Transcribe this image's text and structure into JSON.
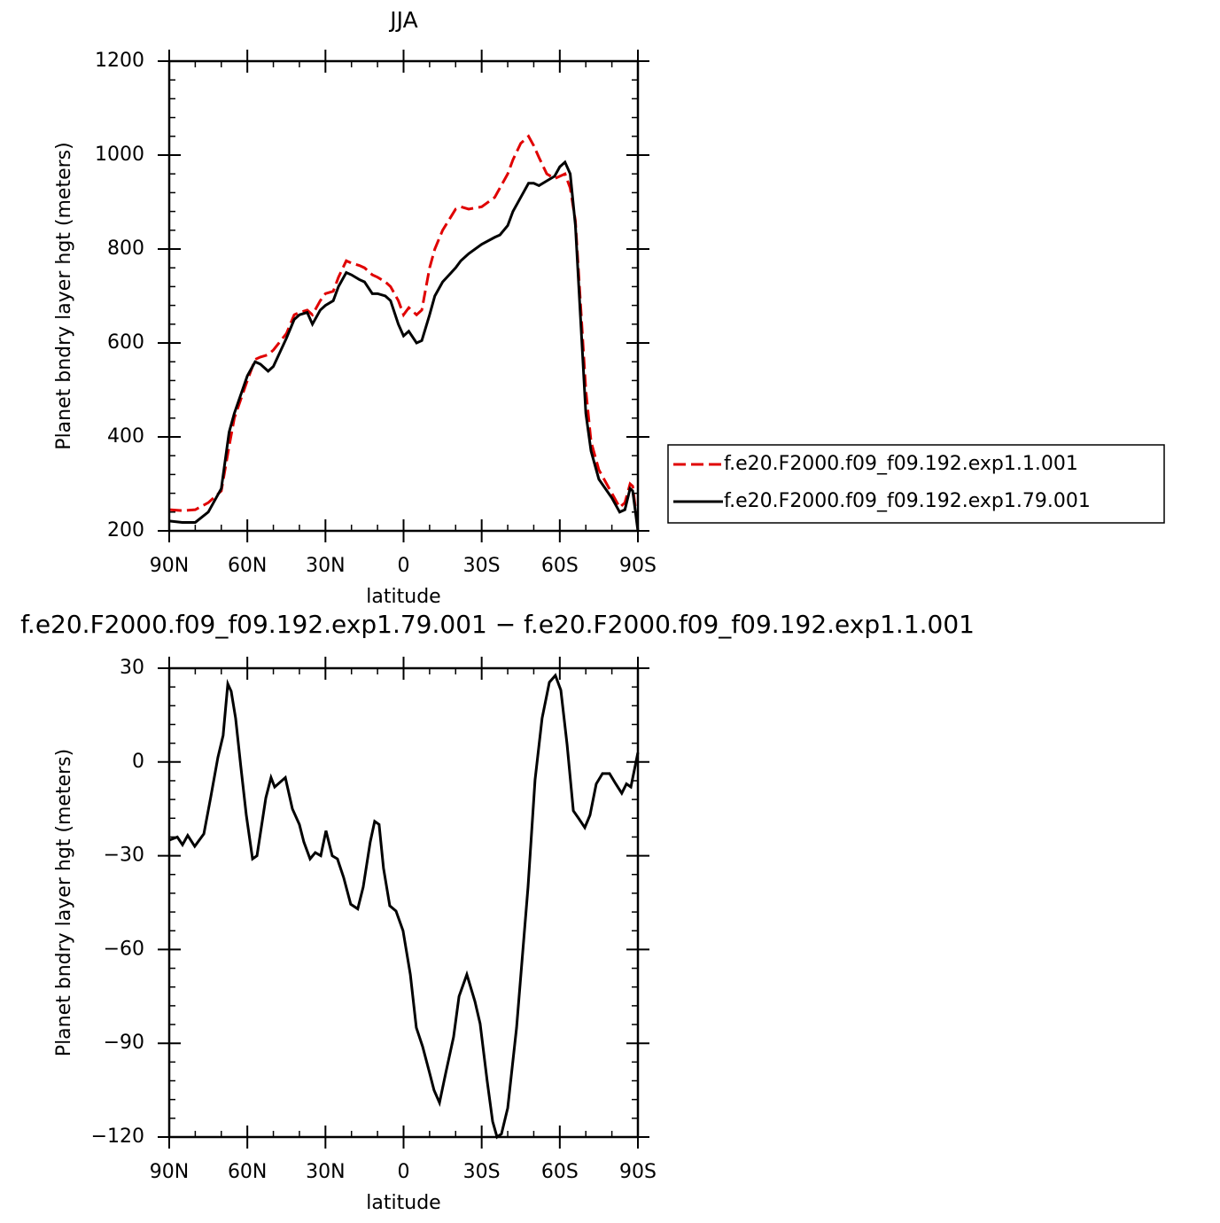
{
  "chart_data": [
    {
      "type": "line",
      "title": "JJA",
      "xlabel": "latitude",
      "ylabel": "Planet bndry layer hgt (meters)",
      "xlim": [
        90,
        -90
      ],
      "xticks": [
        {
          "value": 90,
          "label": "90N"
        },
        {
          "value": 60,
          "label": "60N"
        },
        {
          "value": 30,
          "label": "30N"
        },
        0,
        {
          "value": -30,
          "label": "30S"
        },
        {
          "value": -60,
          "label": "60S"
        },
        {
          "value": -90,
          "label": "90S"
        }
      ],
      "ylim": [
        200,
        1200
      ],
      "yticks": [
        200,
        400,
        600,
        800,
        1000,
        1200
      ],
      "legend": "right",
      "x": [
        90,
        85,
        80,
        75,
        70,
        67,
        65,
        60,
        57,
        55,
        52,
        50,
        45,
        42,
        40,
        37,
        35,
        32,
        30,
        27,
        25,
        22,
        20,
        17,
        15,
        12,
        10,
        7,
        5,
        2,
        0,
        -2,
        -5,
        -7,
        -10,
        -12,
        -15,
        -20,
        -22,
        -25,
        -30,
        -35,
        -37,
        -40,
        -42,
        -45,
        -48,
        -50,
        -52,
        -55,
        -58,
        -60,
        -62,
        -64,
        -66,
        -68,
        -70,
        -72,
        -75,
        -80,
        -83,
        -85,
        -87,
        -88,
        -90
      ],
      "series": [
        {
          "name": "f.e20.F2000.f09_f09.192.exp1.1.001",
          "color": "#e00000",
          "linestyle": "dashed",
          "values": [
            245,
            243,
            245,
            260,
            285,
            380,
            440,
            520,
            565,
            570,
            575,
            585,
            620,
            660,
            665,
            670,
            660,
            690,
            705,
            710,
            740,
            775,
            770,
            765,
            760,
            745,
            740,
            730,
            720,
            690,
            660,
            675,
            660,
            670,
            760,
            800,
            840,
            885,
            890,
            885,
            890,
            910,
            930,
            960,
            990,
            1025,
            1040,
            1020,
            995,
            960,
            950,
            955,
            960,
            930,
            860,
            680,
            500,
            390,
            330,
            280,
            250,
            260,
            300,
            295,
            205
          ]
        },
        {
          "name": "f.e20.F2000.f09_f09.192.exp1.79.001",
          "color": "#000000",
          "linestyle": "solid",
          "values": [
            221,
            218,
            218,
            240,
            290,
            410,
            450,
            530,
            560,
            555,
            540,
            550,
            610,
            650,
            660,
            665,
            640,
            670,
            680,
            690,
            720,
            750,
            745,
            735,
            730,
            705,
            705,
            700,
            690,
            640,
            615,
            625,
            600,
            605,
            660,
            700,
            730,
            760,
            775,
            790,
            810,
            825,
            830,
            850,
            880,
            910,
            940,
            940,
            935,
            945,
            955,
            975,
            985,
            960,
            850,
            650,
            450,
            370,
            310,
            270,
            240,
            245,
            290,
            285,
            200
          ]
        }
      ]
    },
    {
      "type": "line",
      "title": "f.e20.F2000.f09_f09.192.exp1.79.001 − f.e20.F2000.f09_f09.192.exp1.1.001",
      "xlabel": "latitude",
      "ylabel": "Planet bndry layer hgt (meters)",
      "xlim": [
        90,
        -90
      ],
      "xticks": [
        {
          "value": 90,
          "label": "90N"
        },
        {
          "value": 60,
          "label": "60N"
        },
        {
          "value": 30,
          "label": "30N"
        },
        0,
        {
          "value": -30,
          "label": "30S"
        },
        {
          "value": -60,
          "label": "60S"
        },
        {
          "value": -90,
          "label": "90S"
        }
      ],
      "ylim": [
        -120,
        30
      ],
      "yticks": [
        {
          "value": -120,
          "label": "−120"
        },
        {
          "value": -90,
          "label": "−90"
        },
        {
          "value": -60,
          "label": "−60"
        },
        {
          "value": -30,
          "label": "−30"
        },
        0,
        30
      ],
      "x": [
        90,
        86.9,
        84.9,
        82.9,
        80.2,
        76.7,
        74,
        71.3,
        69.3,
        67.5,
        66.2,
        64.5,
        62.5,
        60.4,
        58,
        56.3,
        52.9,
        50.9,
        49.5,
        45.4,
        42.7,
        40,
        38.3,
        35.9,
        33.9,
        31.8,
        29.8,
        27.4,
        25.4,
        23,
        20.3,
        17.6,
        15.5,
        12.8,
        11.1,
        9.4,
        7.7,
        5.3,
        2.9,
        0.2,
        -2.6,
        -4.9,
        -7.3,
        -10,
        -11.7,
        -13.8,
        -16.2,
        -19.2,
        -21.3,
        -24.3,
        -27.4,
        -29.4,
        -32.1,
        -34.2,
        -35.9,
        -37.6,
        -40,
        -43.4,
        -47.8,
        -50.5,
        -53.2,
        -56,
        -58.3,
        -60.4,
        -62.8,
        -65.2,
        -67.2,
        -69.6,
        -71.6,
        -74,
        -76.4,
        -79.1,
        -81.5,
        -83.8,
        -85.6,
        -87.3,
        -90
      ],
      "series": [
        {
          "color": "#000000",
          "linestyle": "solid",
          "values": [
            -25,
            -24,
            -26.5,
            -23.5,
            -27,
            -23,
            -11,
            1.5,
            8.5,
            25,
            22.6,
            14,
            -1.5,
            -17,
            -31,
            -30,
            -11.5,
            -5,
            -8,
            -5,
            -15,
            -20,
            -25.6,
            -31,
            -29,
            -30,
            -22,
            -30,
            -31,
            -37,
            -45.5,
            -47,
            -40,
            -25.6,
            -19,
            -20,
            -34,
            -46,
            -47.7,
            -54,
            -68,
            -85,
            -91,
            -99.5,
            -105,
            -109,
            -99.5,
            -88,
            -75,
            -68,
            -76.6,
            -83.7,
            -102,
            -115,
            -120,
            -119,
            -110.7,
            -85,
            -40,
            -5.7,
            14,
            25.5,
            27.7,
            23,
            5.6,
            -15.6,
            -18,
            -21,
            -17,
            -7,
            -3.7,
            -3.7,
            -7,
            -10,
            -7,
            -8,
            3
          ]
        }
      ]
    }
  ]
}
